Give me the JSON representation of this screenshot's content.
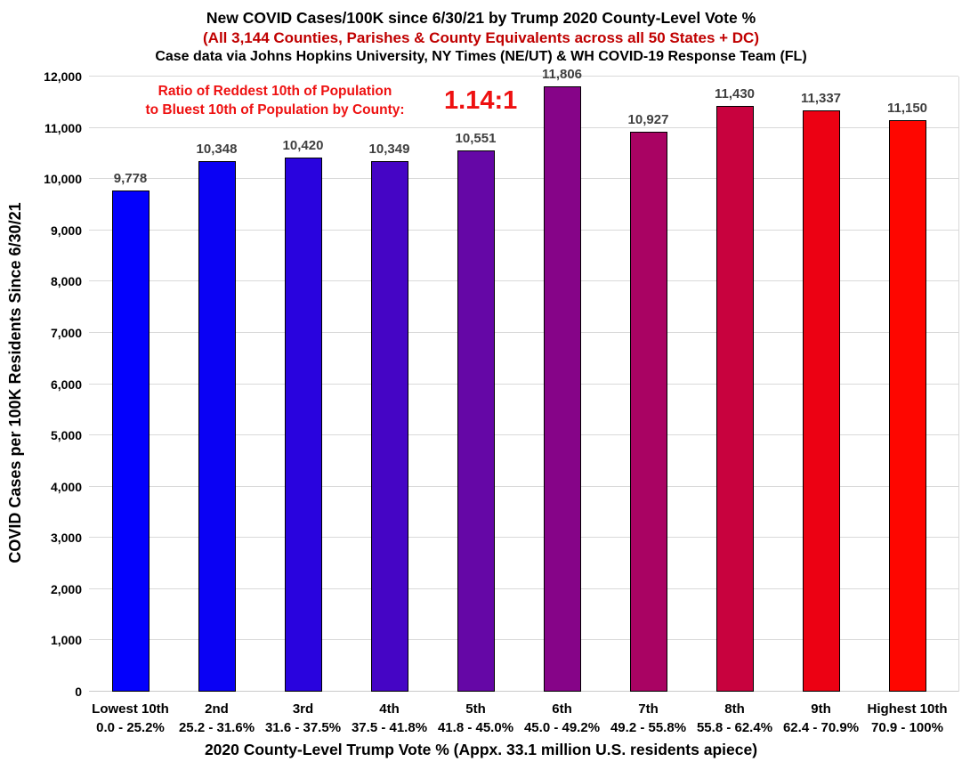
{
  "header": {
    "title": "New COVID Cases/100K since 6/30/21 by Trump 2020 County-Level Vote %",
    "subtitle": "(All 3,144 Counties, Parishes & County Equivalents across all 50 States + DC)",
    "source_line": "Case data via Johns Hopkins University, NY Times (NE/UT) & WH COVID-19 Response Team (FL)"
  },
  "annotation": {
    "line1": "Ratio of Reddest 10th of Population",
    "line2": "to Bluest 10th of Population by County:",
    "ratio": "1.14:1"
  },
  "colors": {
    "subtitle_red": "#c00000",
    "annotation_red": "#ee1111",
    "value_label_gray": "#3f3f3f",
    "gridline_gray": "#d9d9d9"
  },
  "chart_data": {
    "type": "bar",
    "title": "New COVID Cases/100K since 6/30/21 by Trump 2020 County-Level Vote %",
    "xlabel": "2020 County-Level Trump Vote % (Appx. 33.1 million U.S. residents apiece)",
    "ylabel": "COVID Cases per 100K Residents Since 6/30/21",
    "ylim": [
      0,
      12000
    ],
    "ytick_step": 1000,
    "grid": true,
    "legend": false,
    "categories": [
      "Lowest 10th",
      "2nd",
      "3rd",
      "4th",
      "5th",
      "6th",
      "7th",
      "8th",
      "9th",
      "Highest 10th"
    ],
    "category_ranges": [
      "0.0 - 25.2%",
      "25.2 - 31.6%",
      "31.6 - 37.5%",
      "37.5 - 41.8%",
      "41.8 - 45.0%",
      "45.0 - 49.2%",
      "49.2 - 55.8%",
      "55.8 - 62.4%",
      "62.4 - 70.9%",
      "70.9 - 100%"
    ],
    "values": [
      9778,
      10348,
      10420,
      10349,
      10551,
      11806,
      10927,
      11430,
      11337,
      11150
    ],
    "value_labels": [
      "9,778",
      "10,348",
      "10,420",
      "10,349",
      "10,551",
      "11,806",
      "10,927",
      "11,430",
      "11,337",
      "11,150"
    ],
    "bar_colors": [
      "#0300fc",
      "#0a01f4",
      "#2903de",
      "#4505c5",
      "#6507a6",
      "#860488",
      "#a90363",
      "#c8023e",
      "#ec0113",
      "#fe0600"
    ]
  }
}
